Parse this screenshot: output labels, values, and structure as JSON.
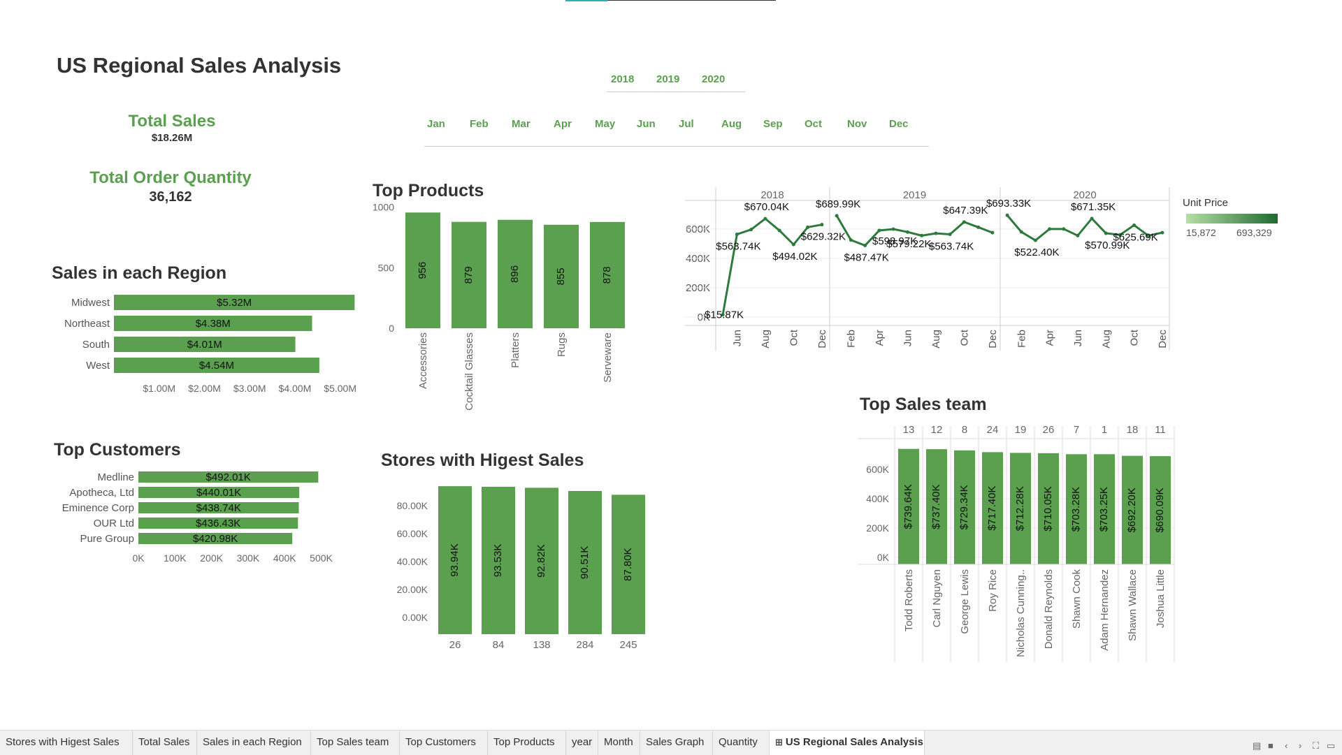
{
  "title": "US Regional Sales Analysis",
  "kpis": {
    "total_sales_label": "Total Sales",
    "total_sales_value": "$18.26M",
    "total_qty_label": "Total Order Quantity",
    "total_qty_value": "36,162"
  },
  "filters": {
    "years": [
      "2018",
      "2019",
      "2020"
    ],
    "months": [
      "Jan",
      "Feb",
      "Mar",
      "Apr",
      "May",
      "Jun",
      "Jul",
      "Aug",
      "Sep",
      "Oct",
      "Nov",
      "Dec"
    ]
  },
  "sections": {
    "region": "Sales in each Region",
    "customers": "Top Customers",
    "products": "Top Products",
    "stores": "Stores with Higest Sales",
    "sales_team": "Top Sales team"
  },
  "legend": {
    "title": "Unit Price",
    "min": "15,872",
    "max": "693,329",
    "color_low": "#b6dfa6",
    "color_high": "#1e6b30"
  },
  "colors": {
    "bar": "#5aa04f",
    "line": "#2d7a3c",
    "accent": "#5aa04f"
  },
  "tabs": [
    "Stores with Higest Sales",
    "Total Sales",
    "Sales in each Region",
    "Top Sales team",
    "Top Customers",
    "Top Products",
    "year",
    "Month",
    "Sales Graph",
    "Quantity",
    "US Regional Sales Analysis"
  ],
  "active_tab": "US Regional Sales Analysis",
  "chart_data": [
    {
      "id": "region",
      "type": "bar",
      "orientation": "horizontal",
      "categories": [
        "Midwest",
        "Northeast",
        "South",
        "West"
      ],
      "values": [
        5.32,
        4.38,
        4.01,
        4.54
      ],
      "labels": [
        "$5.32M",
        "$4.38M",
        "$4.01M",
        "$4.54M"
      ],
      "xlim": [
        0,
        5.5
      ],
      "xticks": [
        1,
        2,
        3,
        4,
        5
      ],
      "xtick_labels": [
        "$1.00M",
        "$2.00M",
        "$3.00M",
        "$4.00M",
        "$5.00M"
      ]
    },
    {
      "id": "customers",
      "type": "bar",
      "orientation": "horizontal",
      "categories": [
        "Medline",
        "Apotheca, Ltd",
        "Eminence Corp",
        "OUR Ltd",
        "Pure Group"
      ],
      "values": [
        492.01,
        440.01,
        438.74,
        436.43,
        420.98
      ],
      "labels": [
        "$492.01K",
        "$440.01K",
        "$438.74K",
        "$436.43K",
        "$420.98K"
      ],
      "xlim": [
        0,
        520
      ],
      "xticks": [
        0,
        100,
        200,
        300,
        400,
        500
      ],
      "xtick_labels": [
        "0K",
        "100K",
        "200K",
        "300K",
        "400K",
        "500K"
      ]
    },
    {
      "id": "products",
      "type": "bar",
      "categories": [
        "Accessories",
        "Cocktail Glasses",
        "Platters",
        "Rugs",
        "Serveware"
      ],
      "values": [
        956,
        879,
        896,
        855,
        878
      ],
      "labels": [
        "956",
        "879",
        "896",
        "855",
        "878"
      ],
      "ylim": [
        0,
        1050
      ],
      "yticks": [
        0,
        500,
        1000
      ],
      "ytick_labels": [
        "0",
        "500",
        "1000"
      ]
    },
    {
      "id": "stores",
      "type": "bar",
      "categories": [
        "26",
        "84",
        "138",
        "284",
        "245"
      ],
      "values": [
        93.94,
        93.53,
        92.82,
        90.51,
        87.8
      ],
      "labels": [
        "93.94K",
        "93.53K",
        "92.82K",
        "90.51K",
        "87.80K"
      ],
      "ylim": [
        -7,
        97
      ],
      "yticks": [
        0,
        20,
        40,
        60,
        80
      ],
      "ytick_labels": [
        "0.00K",
        "20.00K",
        "40.00K",
        "60.00K",
        "80.00K"
      ]
    },
    {
      "id": "sales_graph",
      "type": "line",
      "panels": [
        {
          "year": "2018",
          "x": [
            "May",
            "Jun",
            "Jul",
            "Aug",
            "Sep",
            "Oct",
            "Nov",
            "Dec"
          ],
          "y": [
            15.87,
            563.74,
            596,
            670.04,
            590,
            494.02,
            612,
            629.32
          ],
          "xtick_labels": [
            "Jun",
            "Aug",
            "Oct",
            "Dec"
          ],
          "annotations": [
            {
              "month": "May",
              "value": 15.87,
              "text": "$15.87K"
            },
            {
              "month": "Jun",
              "value": 563.74,
              "text": "$563.74K"
            },
            {
              "month": "Aug",
              "value": 670.04,
              "text": "$670.04K"
            },
            {
              "month": "Oct",
              "value": 494.02,
              "text": "$494.02K"
            },
            {
              "month": "Dec",
              "value": 629.32,
              "text": "$629.32K"
            }
          ]
        },
        {
          "year": "2019",
          "x": [
            "Jan",
            "Feb",
            "Mar",
            "Apr",
            "May",
            "Jun",
            "Jul",
            "Aug",
            "Sep",
            "Oct",
            "Nov",
            "Dec"
          ],
          "y": [
            689.99,
            525,
            487.47,
            590,
            598.97,
            579.22,
            555,
            570,
            563.74,
            647.39,
            612,
            575
          ],
          "xtick_labels": [
            "Feb",
            "Apr",
            "Jun",
            "Aug",
            "Oct",
            "Dec"
          ],
          "annotations": [
            {
              "month": "Jan",
              "value": 689.99,
              "text": "$689.99K"
            },
            {
              "month": "Mar",
              "value": 487.47,
              "text": "$487.47K"
            },
            {
              "month": "May",
              "value": 598.97,
              "text": "$598.97K"
            },
            {
              "month": "Jun",
              "value": 579.22,
              "text": "$579.22K"
            },
            {
              "month": "Sep",
              "value": 563.74,
              "text": "$563.74K"
            },
            {
              "month": "Oct",
              "value": 647.39,
              "text": "$647.39K"
            }
          ]
        },
        {
          "year": "2020",
          "x": [
            "Jan",
            "Feb",
            "Mar",
            "Apr",
            "May",
            "Jun",
            "Jul",
            "Aug",
            "Sep",
            "Oct",
            "Nov",
            "Dec"
          ],
          "y": [
            693.33,
            580,
            522.4,
            600,
            600,
            555,
            671.35,
            570.99,
            560,
            625.69,
            555,
            575
          ],
          "xtick_labels": [
            "Feb",
            "Apr",
            "Jun",
            "Aug",
            "Oct",
            "Dec"
          ],
          "annotations": [
            {
              "month": "Jan",
              "value": 693.33,
              "text": "$693.33K"
            },
            {
              "month": "Mar",
              "value": 522.4,
              "text": "$522.40K"
            },
            {
              "month": "Jul",
              "value": 671.35,
              "text": "$671.35K"
            },
            {
              "month": "Aug",
              "value": 570.99,
              "text": "$570.99K"
            },
            {
              "month": "Oct",
              "value": 625.69,
              "text": "$625.69K"
            }
          ]
        }
      ],
      "ylim": [
        0,
        780
      ],
      "yticks": [
        0,
        200,
        400,
        600
      ],
      "ytick_labels": [
        "0K",
        "200K",
        "400K",
        "600K"
      ]
    },
    {
      "id": "sales_team",
      "type": "bar",
      "categories": [
        "Todd Roberts",
        "Carl Nguyen",
        "George Lewis",
        "Roy Rice",
        "Nicholas Cunning..",
        "Donald Reynolds",
        "Shawn Cook",
        "Adam Hernandez",
        "Shawn Wallace",
        "Joshua Little"
      ],
      "ids": [
        "13",
        "12",
        "8",
        "24",
        "19",
        "26",
        "7",
        "1",
        "18",
        "11"
      ],
      "values": [
        739.64,
        737.4,
        729.34,
        717.4,
        712.28,
        710.05,
        703.28,
        703.25,
        692.2,
        690.09
      ],
      "labels": [
        "$739.64K",
        "$737.40K",
        "$729.34K",
        "$717.40K",
        "$712.28K",
        "$710.05K",
        "$703.28K",
        "$703.25K",
        "$692.20K",
        "$690.09K"
      ],
      "ylim": [
        0,
        800
      ],
      "yticks": [
        0,
        200,
        400,
        600
      ],
      "ytick_labels": [
        "0K",
        "200K",
        "400K",
        "600K"
      ]
    }
  ]
}
